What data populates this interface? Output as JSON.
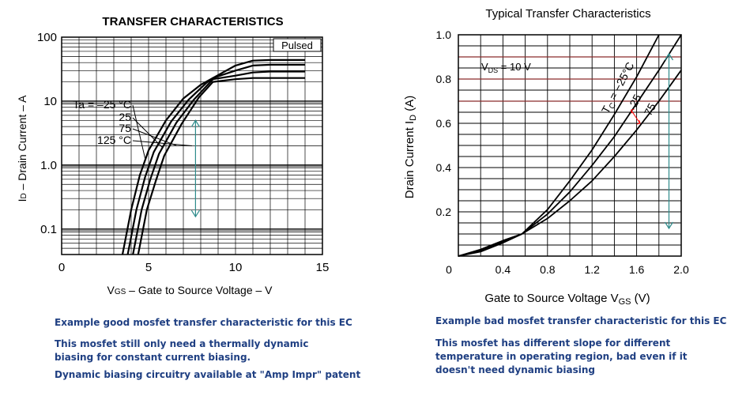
{
  "chart_data": [
    {
      "type": "line",
      "title": "TRANSFER CHARACTERISTICS",
      "xlabel": "VGS – Gate to Source Voltage – V",
      "xlabel_main": "V",
      "xlabel_sub": "GS",
      "xlabel_rest": " – Gate to Source Voltage – V",
      "ylabel": "ID – Drain Current – A",
      "ylabel_main": "I",
      "ylabel_sub": "D",
      "ylabel_rest": " – Drain Current – A",
      "x_ticks": [
        "0",
        "5",
        "10",
        "15"
      ],
      "y_ticks": [
        "0.1",
        "1.0",
        "10",
        "100"
      ],
      "xlim": [
        0,
        15
      ],
      "ylim": [
        0.04,
        100
      ],
      "yscale": "log",
      "grid": true,
      "note": "Pulsed",
      "legend_prefix": "Ta = ",
      "series": [
        {
          "name": "–25 °C",
          "x": [
            3.5,
            4.0,
            4.5,
            5.0,
            6.0,
            7.0,
            8.0,
            8.7,
            10.0,
            11.0,
            12.0,
            14.0
          ],
          "y": [
            0.04,
            0.2,
            0.7,
            1.7,
            5.0,
            11.0,
            18.0,
            23.0,
            36.0,
            43.0,
            44.0,
            44.0
          ]
        },
        {
          "name": "25",
          "x": [
            3.8,
            4.3,
            4.8,
            5.3,
            6.3,
            7.3,
            8.3,
            8.7,
            10.0,
            11.0,
            12.0,
            14.0
          ],
          "y": [
            0.04,
            0.2,
            0.65,
            1.6,
            4.8,
            10.5,
            19.0,
            23.0,
            30.0,
            36.0,
            37.0,
            37.0
          ]
        },
        {
          "name": "75",
          "x": [
            4.1,
            4.6,
            5.1,
            5.6,
            6.6,
            7.6,
            8.7,
            10.0,
            11.0,
            12.0,
            14.0
          ],
          "y": [
            0.04,
            0.2,
            0.6,
            1.5,
            4.6,
            10.5,
            22.0,
            25.0,
            28.0,
            29.0,
            29.0
          ]
        },
        {
          "name": "125 °C",
          "x": [
            4.4,
            4.9,
            5.4,
            5.9,
            6.9,
            7.9,
            8.7,
            10.0,
            11.0,
            12.0,
            14.0
          ],
          "y": [
            0.04,
            0.2,
            0.55,
            1.4,
            4.4,
            11.5,
            20.0,
            22.0,
            23.0,
            23.0,
            23.0
          ]
        }
      ],
      "arrow_range_v": [
        0.05,
        5.0
      ],
      "arrow_x": 7.7
    },
    {
      "type": "line",
      "title": "Typical Transfer Characteristics",
      "xlabel": "Gate to Source Voltage VGS (V)",
      "xlabel_main": "Gate to Source Voltage  V",
      "xlabel_sub": "GS",
      "xlabel_rest": "  (V)",
      "ylabel": "Drain Current ID (A)",
      "ylabel_main": "Drain Current  I",
      "ylabel_sub": "D",
      "ylabel_rest": "  (A)",
      "x_ticks": [
        "0",
        "0.4",
        "0.8",
        "1.2",
        "1.6",
        "2.0"
      ],
      "y_ticks": [
        "0.2",
        "0.4",
        "0.6",
        "0.8",
        "1.0"
      ],
      "xlim": [
        0,
        2.0
      ],
      "ylim": [
        0,
        1.0
      ],
      "grid": true,
      "highlight_y": [
        0.7,
        0.8,
        0.9
      ],
      "condition_main": "V",
      "condition_sub": "DS",
      "condition_rest": " = 10 V",
      "legend_tc_main": "T",
      "legend_tc_sub": "C",
      "series": [
        {
          "name": " = −25°C",
          "x": [
            0.0,
            0.2,
            0.4,
            0.57,
            0.8,
            1.0,
            1.2,
            1.4,
            1.6,
            1.8
          ],
          "y": [
            0.0,
            0.02,
            0.06,
            0.1,
            0.21,
            0.34,
            0.48,
            0.64,
            0.81,
            1.0
          ]
        },
        {
          "name": "25",
          "x": [
            0.0,
            0.2,
            0.4,
            0.57,
            0.8,
            1.0,
            1.2,
            1.4,
            1.6,
            1.8,
            2.0
          ],
          "y": [
            0.0,
            0.025,
            0.065,
            0.1,
            0.19,
            0.29,
            0.41,
            0.54,
            0.69,
            0.84,
            1.0
          ]
        },
        {
          "name": "75",
          "x": [
            0.0,
            0.2,
            0.4,
            0.57,
            0.8,
            1.0,
            1.2,
            1.4,
            1.6,
            1.8,
            2.0
          ],
          "y": [
            0.0,
            0.03,
            0.07,
            0.1,
            0.17,
            0.25,
            0.34,
            0.45,
            0.57,
            0.7,
            0.84
          ]
        }
      ],
      "arrow_range_v": [
        0.0,
        0.9
      ],
      "arrow_x": 1.89
    }
  ],
  "captions": {
    "left_title": "Example good mosfet transfer characteristic for this EC",
    "left_line1": "This mosfet still only need a thermally dynamic",
    "left_line2": "biasing for constant current biasing.",
    "left_line3": "Dynamic biasing circuitry available at \"Amp Impr\" patent",
    "right_title": "Example bad mosfet transfer characteristic for this EC",
    "right_line1": "This mosfet has different slope for different",
    "right_line2": "temperature in operating region, bad even if it",
    "right_line3": "doesn't need dynamic biasing"
  },
  "colors": {
    "caption": "#1f3f82",
    "teal_arrow": "#2e8b8b",
    "highlight_line": "#8b2a2a",
    "red_arrow": "#ff0000"
  }
}
